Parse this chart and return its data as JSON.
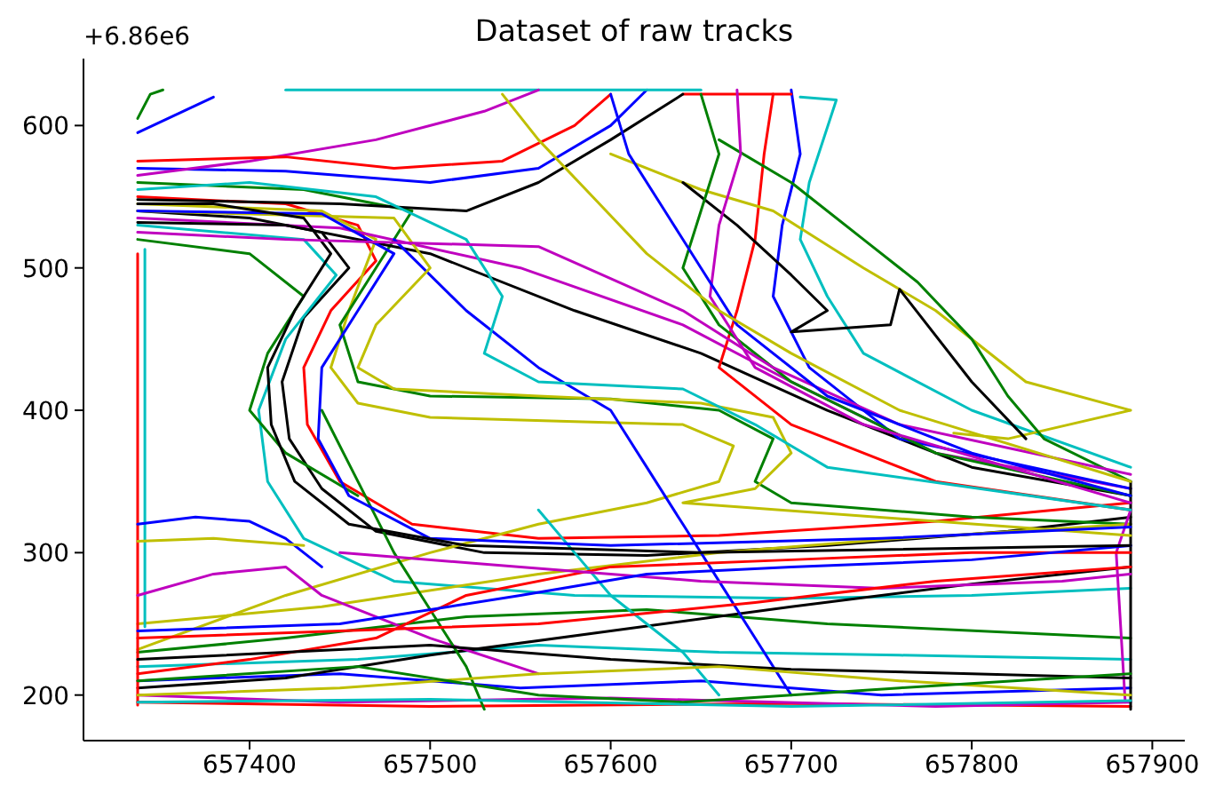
{
  "chart_data": {
    "type": "line",
    "title": "Dataset of raw tracks",
    "annotations": [
      "+6.86e6"
    ],
    "line_style": "solid",
    "xlim": [
      657308,
      657918
    ],
    "ylim": [
      168,
      647
    ],
    "xticks": [
      657400,
      657500,
      657600,
      657700,
      657800,
      657900
    ],
    "yticks": [
      200,
      300,
      400,
      500,
      600
    ],
    "series": [
      {
        "color": "#000000",
        "x": [
          657338,
          657400,
          657440,
          657455,
          657430,
          657418,
          657422,
          657440,
          657470,
          657530,
          657620,
          657720,
          657820,
          657888
        ],
        "values": [
          540,
          535,
          525,
          500,
          465,
          420,
          380,
          345,
          315,
          300,
          298,
          305,
          315,
          325
        ]
      },
      {
        "color": "#ff0000",
        "x": [
          657338,
          657420,
          657460,
          657470,
          657445,
          657430,
          657432,
          657450,
          657490,
          657560,
          657660,
          657780,
          657888
        ],
        "values": [
          550,
          545,
          530,
          505,
          470,
          430,
          390,
          350,
          320,
          310,
          312,
          322,
          335
        ]
      },
      {
        "color": "#00bfbf",
        "x": [
          657338,
          657430,
          657448,
          657420,
          657405,
          657410,
          657430,
          657480,
          657580,
          657700,
          657800,
          657888
        ],
        "values": [
          530,
          520,
          495,
          450,
          400,
          350,
          310,
          280,
          270,
          268,
          270,
          275
        ]
      },
      {
        "color": "#bfbf00",
        "x": [
          657338,
          657440,
          657470,
          657455,
          657445,
          657460,
          657500,
          657580,
          657640,
          657668,
          657660,
          657620,
          657560,
          657500,
          657420,
          657338
        ],
        "values": [
          545,
          540,
          520,
          470,
          430,
          405,
          395,
          392,
          390,
          375,
          350,
          335,
          320,
          300,
          270,
          232
        ]
      },
      {
        "color": "#008000",
        "x": [
          657338,
          657430,
          657490,
          657470,
          657450,
          657460,
          657500,
          657600,
          657660,
          657690,
          657680,
          657700,
          657800,
          657888
        ],
        "values": [
          560,
          555,
          540,
          500,
          460,
          420,
          410,
          408,
          400,
          380,
          350,
          335,
          325,
          320
        ]
      },
      {
        "color": "#0000ff",
        "x": [
          657338,
          657420,
          657500,
          657560,
          657600,
          657620
        ],
        "values": [
          570,
          568,
          560,
          570,
          600,
          625
        ]
      },
      {
        "color": "#bf00bf",
        "x": [
          657338,
          657450,
          657550,
          657640,
          657700,
          657780,
          657888
        ],
        "values": [
          535,
          528,
          500,
          460,
          420,
          370,
          345
        ]
      },
      {
        "color": "#000000",
        "x": [
          657338,
          657420,
          657500,
          657580,
          657650,
          657720,
          657800,
          657888
        ],
        "values": [
          532,
          530,
          510,
          470,
          440,
          400,
          360,
          340
        ]
      },
      {
        "color": "#ff0000",
        "x": [
          657690,
          657685,
          657680,
          657670,
          657660,
          657700,
          657780,
          657888
        ],
        "values": [
          622,
          580,
          520,
          470,
          430,
          390,
          350,
          330
        ]
      },
      {
        "color": "#0000ff",
        "x": [
          657700,
          657705,
          657695,
          657690,
          657710,
          657760,
          657888
        ],
        "values": [
          625,
          580,
          530,
          480,
          430,
          380,
          345
        ]
      },
      {
        "color": "#00bfbf",
        "x": [
          657705,
          657725,
          657710,
          657705,
          657720,
          657740,
          657800,
          657888
        ],
        "values": [
          620,
          618,
          560,
          520,
          480,
          440,
          400,
          360
        ]
      },
      {
        "color": "#bfbf00",
        "x": [
          657600,
          657650,
          657690,
          657740,
          657780,
          657830,
          657888,
          657820,
          657790
        ],
        "values": [
          580,
          555,
          540,
          500,
          470,
          420,
          400,
          380,
          384
        ]
      },
      {
        "color": "#008000",
        "x": [
          657660,
          657700,
          657740,
          657770,
          657800,
          657820,
          657840,
          657888
        ],
        "values": [
          590,
          560,
          520,
          490,
          450,
          410,
          380,
          350
        ]
      },
      {
        "color": "#000000",
        "x": [
          657640,
          657670,
          657700,
          657720,
          657700,
          657755,
          657760,
          657800,
          657830
        ],
        "values": [
          560,
          530,
          495,
          470,
          455,
          460,
          485,
          420,
          380
        ]
      },
      {
        "color": "#0000ff",
        "x": [
          657338,
          657450,
          657550,
          657650,
          657750,
          657888
        ],
        "values": [
          210,
          215,
          205,
          210,
          200,
          205
        ]
      },
      {
        "color": "#ff0000",
        "x": [
          657338,
          657500,
          657700,
          657888
        ],
        "values": [
          195,
          192,
          194,
          192
        ]
      },
      {
        "color": "#008000",
        "x": [
          657338,
          657420,
          657520,
          657620,
          657720,
          657888
        ],
        "values": [
          230,
          240,
          255,
          260,
          250,
          240
        ]
      },
      {
        "color": "#bf00bf",
        "x": [
          657338,
          657450,
          657600,
          657780,
          657888
        ],
        "values": [
          200,
          195,
          198,
          192,
          195
        ]
      },
      {
        "color": "#00bfbf",
        "x": [
          657338,
          657460,
          657560,
          657660,
          657760,
          657888
        ],
        "values": [
          220,
          225,
          235,
          230,
          228,
          225
        ]
      },
      {
        "color": "#bfbf00",
        "x": [
          657338,
          657440,
          657560,
          657660,
          657760,
          657888
        ],
        "values": [
          250,
          262,
          285,
          300,
          310,
          320
        ]
      },
      {
        "color": "#000000",
        "x": [
          657338,
          657420,
          657500,
          657600,
          657700,
          657800,
          657888
        ],
        "values": [
          205,
          212,
          228,
          245,
          262,
          278,
          290
        ]
      },
      {
        "color": "#ff0000",
        "x": [
          657338,
          657338
        ],
        "values": [
          193,
          510
        ]
      },
      {
        "color": "#00bfbf",
        "x": [
          657342,
          657342
        ],
        "values": [
          248,
          513
        ]
      },
      {
        "color": "#0000ff",
        "x": [
          657338,
          657370,
          657400,
          657420,
          657440
        ],
        "values": [
          320,
          325,
          322,
          310,
          290
        ]
      },
      {
        "color": "#bfbf00",
        "x": [
          657338,
          657380,
          657430
        ],
        "values": [
          308,
          310,
          305
        ]
      },
      {
        "color": "#bf00bf",
        "x": [
          657338,
          657380,
          657420,
          657440,
          657500,
          657560
        ],
        "values": [
          270,
          285,
          290,
          270,
          240,
          215
        ]
      },
      {
        "color": "#000000",
        "x": [
          657888,
          657888
        ],
        "values": [
          190,
          350
        ]
      },
      {
        "color": "#bf00bf",
        "x": [
          657885,
          657880,
          657888
        ],
        "values": [
          195,
          300,
          330
        ]
      },
      {
        "color": "#00bfbf",
        "x": [
          657420,
          657550,
          657650
        ],
        "values": [
          625,
          625,
          625
        ]
      },
      {
        "color": "#ff0000",
        "x": [
          657640,
          657700
        ],
        "values": [
          622,
          622
        ]
      },
      {
        "color": "#0000ff",
        "x": [
          657338,
          657380
        ],
        "values": [
          595,
          620
        ]
      },
      {
        "color": "#008000",
        "x": [
          657338,
          657345,
          657352
        ],
        "values": [
          605,
          622,
          625
        ]
      },
      {
        "color": "#bf00bf",
        "x": [
          657338,
          657400,
          657470,
          657530,
          657560
        ],
        "values": [
          565,
          575,
          590,
          610,
          625
        ]
      },
      {
        "color": "#0000ff",
        "x": [
          657480,
          657520,
          657560,
          657600,
          657620,
          657640,
          657660,
          657680,
          657700
        ],
        "values": [
          520,
          470,
          430,
          400,
          360,
          320,
          280,
          240,
          200
        ]
      },
      {
        "color": "#008000",
        "x": [
          657440,
          657460,
          657480,
          657500,
          657520,
          657530
        ],
        "values": [
          400,
          350,
          300,
          260,
          220,
          190
        ]
      },
      {
        "color": "#00bfbf",
        "x": [
          657560,
          657580,
          657600,
          657640,
          657660
        ],
        "values": [
          330,
          300,
          270,
          230,
          200
        ]
      },
      {
        "color": "#ff0000",
        "x": [
          657338,
          657400,
          657470,
          657520,
          657600,
          657700,
          657800,
          657888
        ],
        "values": [
          215,
          225,
          240,
          270,
          290,
          295,
          300,
          300
        ]
      },
      {
        "color": "#bfbf00",
        "x": [
          657338,
          657480,
          657500,
          657470,
          657460,
          657480,
          657560,
          657650,
          657690,
          657700,
          657680,
          657640,
          657888
        ],
        "values": [
          540,
          535,
          500,
          460,
          430,
          415,
          410,
          405,
          395,
          370,
          345,
          335,
          312
        ]
      },
      {
        "color": "#000000",
        "x": [
          657338,
          657500,
          657600,
          657700,
          657800,
          657888
        ],
        "values": [
          225,
          235,
          225,
          218,
          215,
          212
        ]
      },
      {
        "color": "#bf00bf",
        "x": [
          657450,
          657550,
          657650,
          657750,
          657850,
          657888
        ],
        "values": [
          300,
          290,
          280,
          275,
          280,
          285
        ]
      },
      {
        "color": "#0000ff",
        "x": [
          657338,
          657450,
          657550,
          657620,
          657700,
          657800,
          657888
        ],
        "values": [
          245,
          250,
          270,
          285,
          290,
          295,
          305
        ]
      },
      {
        "color": "#008000",
        "x": [
          657338,
          657400,
          657430,
          657410,
          657400,
          657420,
          657460
        ],
        "values": [
          520,
          510,
          480,
          440,
          400,
          370,
          340
        ]
      },
      {
        "color": "#000000",
        "x": [
          657338,
          657450,
          657520,
          657560,
          657600,
          657640
        ],
        "values": [
          548,
          545,
          540,
          560,
          590,
          622
        ]
      },
      {
        "color": "#ff0000",
        "x": [
          657338,
          657420,
          657480,
          657540,
          657580,
          657600
        ],
        "values": [
          575,
          578,
          570,
          575,
          600,
          622
        ]
      },
      {
        "color": "#008000",
        "x": [
          657650,
          657660,
          657650,
          657640,
          657660,
          657700,
          657780,
          657888
        ],
        "values": [
          622,
          580,
          540,
          500,
          460,
          420,
          370,
          340
        ]
      },
      {
        "color": "#bf00bf",
        "x": [
          657670,
          657672,
          657660,
          657655,
          657680,
          657740,
          657888
        ],
        "values": [
          625,
          580,
          530,
          480,
          430,
          390,
          335
        ]
      },
      {
        "color": "#00bfbf",
        "x": [
          657338,
          657400,
          657470,
          657520,
          657540,
          657530,
          657560,
          657640,
          657680,
          657720,
          657888
        ],
        "values": [
          555,
          560,
          550,
          520,
          480,
          440,
          420,
          415,
          390,
          360,
          330
        ]
      },
      {
        "color": "#0000ff",
        "x": [
          657338,
          657440,
          657480,
          657460,
          657440,
          657438,
          657455,
          657500,
          657600,
          657750,
          657888
        ],
        "values": [
          540,
          538,
          510,
          470,
          430,
          380,
          340,
          310,
          305,
          310,
          318
        ]
      },
      {
        "color": "#bfbf00",
        "x": [
          657338,
          657450,
          657560,
          657660,
          657760,
          657888
        ],
        "values": [
          200,
          205,
          215,
          220,
          210,
          200
        ]
      },
      {
        "color": "#008000",
        "x": [
          657338,
          657460,
          657560,
          657640,
          657760,
          657888
        ],
        "values": [
          210,
          220,
          200,
          195,
          205,
          215
        ]
      },
      {
        "color": "#00bfbf",
        "x": [
          657338,
          657500,
          657700,
          657888
        ],
        "values": [
          195,
          197,
          192,
          196
        ]
      },
      {
        "color": "#ff0000",
        "x": [
          657338,
          657450,
          657560,
          657680,
          657780,
          657888
        ],
        "values": [
          240,
          245,
          250,
          265,
          280,
          290
        ]
      },
      {
        "color": "#000000",
        "x": [
          657338,
          657380,
          657430,
          657445,
          657425,
          657410,
          657412,
          657425,
          657455,
          657520,
          657650,
          657888
        ],
        "values": [
          545,
          545,
          535,
          510,
          470,
          430,
          390,
          350,
          320,
          305,
          300,
          305
        ]
      },
      {
        "color": "#bf00bf",
        "x": [
          657338,
          657420,
          657560,
          657640,
          657690,
          657760,
          657888
        ],
        "values": [
          525,
          520,
          515,
          470,
          430,
          390,
          355
        ]
      },
      {
        "color": "#0000ff",
        "x": [
          657600,
          657610,
          657630,
          657650,
          657670,
          657720,
          657800,
          657888
        ],
        "values": [
          622,
          580,
          540,
          500,
          460,
          410,
          370,
          340
        ]
      },
      {
        "color": "#bfbf00",
        "x": [
          657540,
          657560,
          657590,
          657620,
          657660,
          657700,
          657760,
          657888
        ],
        "values": [
          622,
          590,
          550,
          510,
          470,
          440,
          400,
          350
        ]
      }
    ]
  }
}
